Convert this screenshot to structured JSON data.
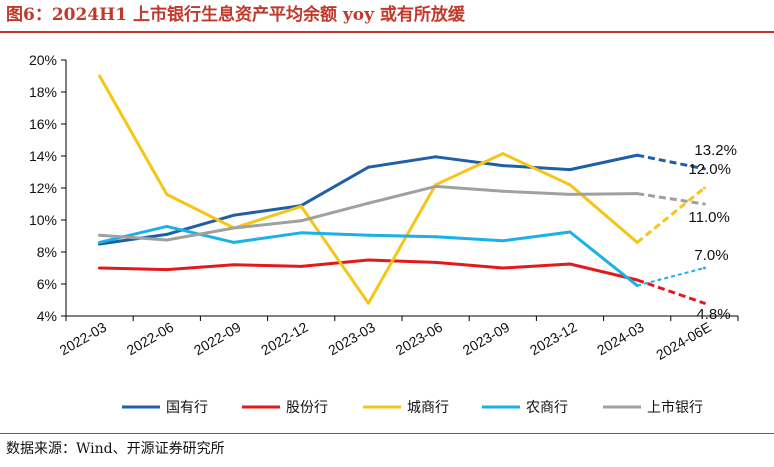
{
  "title": "图6：2024H1 上市银行生息资产平均余额 yoy 或有所放缓",
  "source": "数据来源：Wind、开源证券研究所",
  "chart_data": {
    "type": "line",
    "categories": [
      "2022-03",
      "2022-06",
      "2022-09",
      "2022-12",
      "2023-03",
      "2023-06",
      "2023-09",
      "2023-12",
      "2024-03",
      "2024-06E"
    ],
    "ylim": [
      4,
      20
    ],
    "yticks": [
      4,
      6,
      8,
      10,
      12,
      14,
      16,
      18,
      20
    ],
    "ytick_labels": [
      "4%",
      "6%",
      "8%",
      "10%",
      "12%",
      "14%",
      "16%",
      "18%",
      "20%"
    ],
    "grid": false,
    "legend_position": "bottom",
    "estimate_from_index": 8,
    "series": [
      {
        "name": "国有行",
        "color": "#1f5fa6",
        "values": [
          8.5,
          9.1,
          10.3,
          10.9,
          13.3,
          13.95,
          13.4,
          13.15,
          14.05,
          13.2
        ],
        "end_label": "13.2%"
      },
      {
        "name": "股份行",
        "color": "#e31a1c",
        "values": [
          7.0,
          6.9,
          7.2,
          7.1,
          7.5,
          7.35,
          7.0,
          7.25,
          6.25,
          4.8
        ],
        "end_label": "4.8%"
      },
      {
        "name": "城商行",
        "color": "#f5c518",
        "values": [
          19.0,
          11.6,
          9.5,
          10.85,
          4.8,
          12.2,
          14.15,
          12.2,
          8.6,
          12.0
        ],
        "end_label": "12.0%"
      },
      {
        "name": "农商行",
        "color": "#1ab0e8",
        "values": [
          8.6,
          9.6,
          8.6,
          9.2,
          9.05,
          8.95,
          8.7,
          9.25,
          5.9,
          7.0
        ],
        "end_label": "7.0%"
      },
      {
        "name": "上市银行",
        "color": "#a0a0a0",
        "values": [
          9.05,
          8.75,
          9.5,
          9.95,
          11.05,
          12.1,
          11.8,
          11.6,
          11.65,
          11.0
        ],
        "end_label": "11.0%"
      }
    ]
  }
}
